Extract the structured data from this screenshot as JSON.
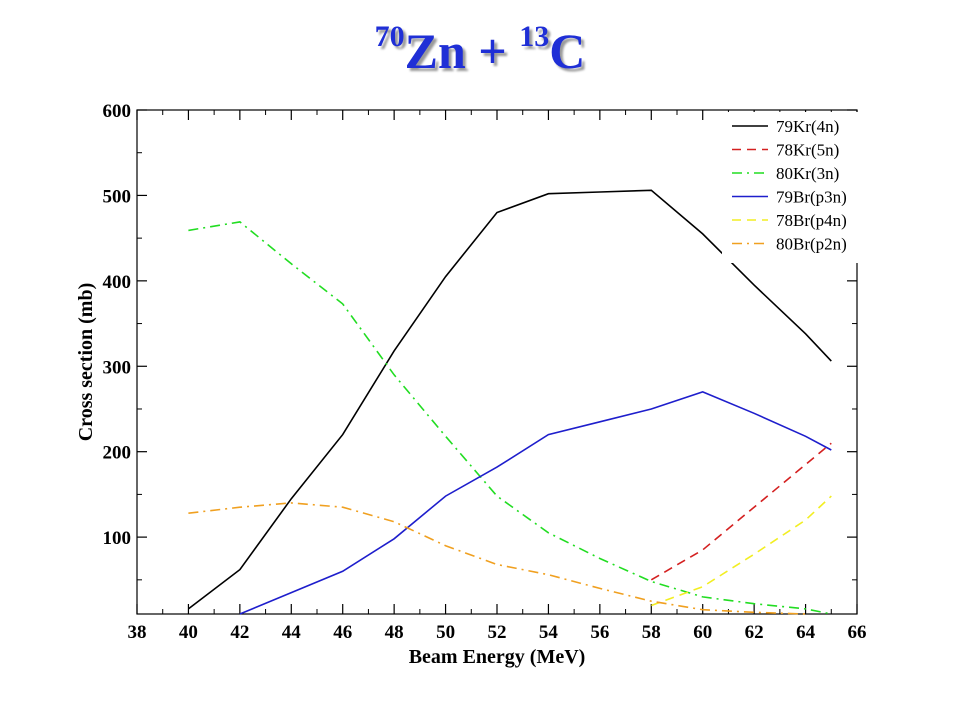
{
  "title": {
    "sup1": "70",
    "part1": "Zn + ",
    "sup2": "13",
    "part2": "C"
  },
  "chart_data": {
    "type": "line",
    "title": "70Zn + 13C",
    "xlabel": "Beam Energy (MeV)",
    "ylabel": "Cross section (mb)",
    "xlim": [
      38,
      66
    ],
    "ylim": [
      10,
      600
    ],
    "xticks": [
      38,
      40,
      42,
      44,
      46,
      48,
      50,
      52,
      54,
      56,
      58,
      60,
      62,
      64,
      66
    ],
    "yticks": [
      100,
      200,
      300,
      400,
      500,
      600
    ],
    "grid": false,
    "legend": "top-right",
    "series": [
      {
        "name": "79Kr(4n)",
        "color": "#000000",
        "dash": "solid",
        "x": [
          40,
          42,
          44,
          46,
          48,
          50,
          52,
          54,
          56,
          58,
          60,
          62,
          64,
          65
        ],
        "y": [
          16,
          62,
          145,
          220,
          318,
          405,
          480,
          502,
          504,
          506,
          455,
          395,
          338,
          306
        ]
      },
      {
        "name": "78Kr(5n)",
        "color": "#d42020",
        "dash": "dashed",
        "x": [
          58,
          60,
          62,
          64,
          65
        ],
        "y": [
          50,
          85,
          135,
          185,
          210
        ]
      },
      {
        "name": "80Kr(3n)",
        "color": "#22dd22",
        "dash": "dashdot",
        "x": [
          40,
          42,
          44,
          46,
          48,
          50,
          52,
          54,
          56,
          58,
          60,
          62,
          64,
          65
        ],
        "y": [
          459,
          469,
          420,
          373,
          290,
          218,
          148,
          105,
          75,
          48,
          30,
          22,
          16,
          10
        ]
      },
      {
        "name": "79Br(p3n)",
        "color": "#1e1ecc",
        "dash": "solid",
        "x": [
          42,
          44,
          46,
          48,
          50,
          52,
          54,
          56,
          58,
          60,
          62,
          64,
          65
        ],
        "y": [
          10,
          35,
          60,
          98,
          148,
          182,
          220,
          235,
          250,
          270,
          245,
          218,
          202
        ]
      },
      {
        "name": "78Br(p4n)",
        "color": "#f2ee22",
        "dash": "dashed",
        "x": [
          58,
          60,
          62,
          64,
          65
        ],
        "y": [
          20,
          42,
          80,
          120,
          148
        ]
      },
      {
        "name": "80Br(p2n)",
        "color": "#f0a020",
        "dash": "dashdot",
        "x": [
          40,
          42,
          44,
          46,
          48,
          50,
          52,
          54,
          56,
          58,
          60,
          62,
          64
        ],
        "y": [
          128,
          135,
          140,
          135,
          118,
          90,
          68,
          56,
          40,
          25,
          15,
          12,
          10
        ]
      }
    ]
  }
}
